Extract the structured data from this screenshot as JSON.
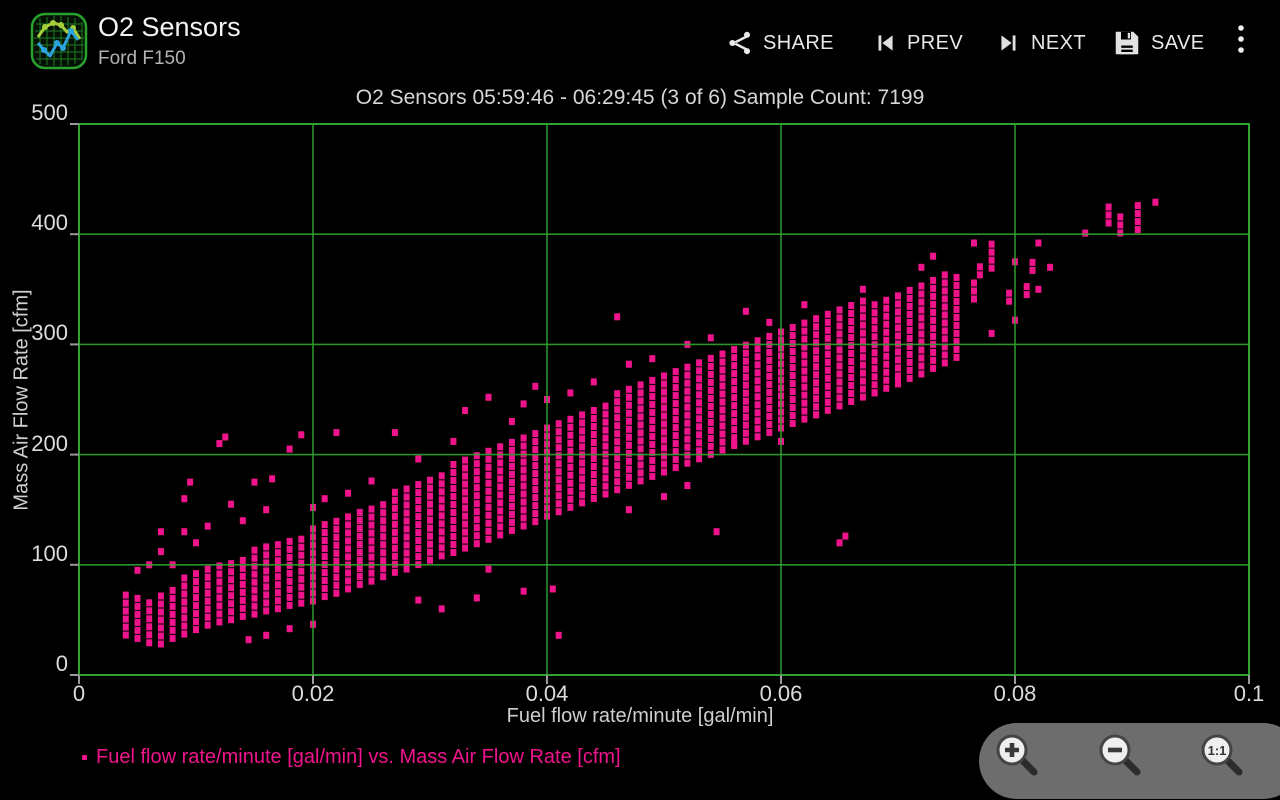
{
  "header": {
    "title": "O2 Sensors",
    "subtitle": "Ford F150",
    "actions": [
      {
        "id": "share",
        "label": "SHARE",
        "icon": "share-icon"
      },
      {
        "id": "prev",
        "label": "PREV",
        "icon": "skip-previous-icon"
      },
      {
        "id": "next",
        "label": "NEXT",
        "icon": "skip-next-icon"
      },
      {
        "id": "save",
        "label": "SAVE",
        "icon": "save-icon"
      },
      {
        "id": "overflow",
        "label": "",
        "icon": "overflow-menu-icon"
      }
    ]
  },
  "chart_data": {
    "type": "scatter",
    "title": "O2 Sensors 05:59:46 - 06:29:45 (3 of 6) Sample Count: 7199",
    "time_start": "05:59:46",
    "time_end": "06:29:45",
    "page": "3 of 6",
    "sample_count": 7199,
    "xlabel": "Fuel flow rate/minute [gal/min]",
    "ylabel": "Mass Air Flow Rate [cfm]",
    "series_label": "Fuel flow rate/minute [gal/min] vs. Mass Air Flow Rate [cfm]",
    "xlim": [
      0,
      0.1
    ],
    "ylim": [
      0,
      500
    ],
    "xticks": [
      0,
      0.02,
      0.04,
      0.06,
      0.08,
      0.1
    ],
    "xtick_labels": [
      "0",
      "0.02",
      "0.04",
      "0.06",
      "0.08",
      "0.1"
    ],
    "yticks": [
      0,
      100,
      200,
      300,
      400,
      500
    ],
    "ytick_labels": [
      "0",
      "100",
      "200",
      "300",
      "400",
      "500"
    ],
    "grid": true,
    "legend_position": "bottom-left",
    "marker_color": "#f0148c",
    "trend": "positive linear, y ≈ 4230·x + 28",
    "columns": [
      {
        "x": 0.004,
        "y_min": 33,
        "y_max": 72
      },
      {
        "x": 0.005,
        "y_min": 30,
        "y_max": 68
      },
      {
        "x": 0.006,
        "y_min": 26,
        "y_max": 66
      },
      {
        "x": 0.007,
        "y_min": 25,
        "y_max": 74
      },
      {
        "x": 0.008,
        "y_min": 30,
        "y_max": 80
      },
      {
        "x": 0.009,
        "y_min": 34,
        "y_max": 86
      },
      {
        "x": 0.01,
        "y_min": 38,
        "y_max": 92
      },
      {
        "x": 0.011,
        "y_min": 42,
        "y_max": 96
      },
      {
        "x": 0.012,
        "y_min": 45,
        "y_max": 100
      },
      {
        "x": 0.013,
        "y_min": 47,
        "y_max": 104
      },
      {
        "x": 0.014,
        "y_min": 50,
        "y_max": 108
      },
      {
        "x": 0.015,
        "y_min": 52,
        "y_max": 112
      },
      {
        "x": 0.016,
        "y_min": 55,
        "y_max": 116
      },
      {
        "x": 0.017,
        "y_min": 57,
        "y_max": 120
      },
      {
        "x": 0.018,
        "y_min": 60,
        "y_max": 122
      },
      {
        "x": 0.019,
        "y_min": 62,
        "y_max": 126
      },
      {
        "x": 0.02,
        "y_min": 64,
        "y_max": 130
      },
      {
        "x": 0.021,
        "y_min": 68,
        "y_max": 134
      },
      {
        "x": 0.022,
        "y_min": 71,
        "y_max": 140
      },
      {
        "x": 0.023,
        "y_min": 75,
        "y_max": 144
      },
      {
        "x": 0.024,
        "y_min": 79,
        "y_max": 148
      },
      {
        "x": 0.025,
        "y_min": 82,
        "y_max": 154
      },
      {
        "x": 0.026,
        "y_min": 86,
        "y_max": 158
      },
      {
        "x": 0.027,
        "y_min": 90,
        "y_max": 163
      },
      {
        "x": 0.028,
        "y_min": 93,
        "y_max": 168
      },
      {
        "x": 0.029,
        "y_min": 97,
        "y_max": 172
      },
      {
        "x": 0.03,
        "y_min": 101,
        "y_max": 178
      },
      {
        "x": 0.031,
        "y_min": 105,
        "y_max": 182
      },
      {
        "x": 0.032,
        "y_min": 108,
        "y_max": 188
      },
      {
        "x": 0.033,
        "y_min": 112,
        "y_max": 192
      },
      {
        "x": 0.034,
        "y_min": 116,
        "y_max": 196
      },
      {
        "x": 0.035,
        "y_min": 120,
        "y_max": 202
      },
      {
        "x": 0.036,
        "y_min": 124,
        "y_max": 206
      },
      {
        "x": 0.037,
        "y_min": 128,
        "y_max": 211
      },
      {
        "x": 0.038,
        "y_min": 132,
        "y_max": 216
      },
      {
        "x": 0.039,
        "y_min": 136,
        "y_max": 220
      },
      {
        "x": 0.04,
        "y_min": 141,
        "y_max": 226
      },
      {
        "x": 0.041,
        "y_min": 145,
        "y_max": 230
      },
      {
        "x": 0.042,
        "y_min": 149,
        "y_max": 234
      },
      {
        "x": 0.043,
        "y_min": 153,
        "y_max": 239
      },
      {
        "x": 0.044,
        "y_min": 157,
        "y_max": 244
      },
      {
        "x": 0.045,
        "y_min": 161,
        "y_max": 248
      },
      {
        "x": 0.046,
        "y_min": 165,
        "y_max": 253
      },
      {
        "x": 0.047,
        "y_min": 169,
        "y_max": 257
      },
      {
        "x": 0.048,
        "y_min": 173,
        "y_max": 262
      },
      {
        "x": 0.049,
        "y_min": 177,
        "y_max": 266
      },
      {
        "x": 0.05,
        "y_min": 181,
        "y_max": 271
      },
      {
        "x": 0.051,
        "y_min": 185,
        "y_max": 275
      },
      {
        "x": 0.052,
        "y_min": 189,
        "y_max": 280
      },
      {
        "x": 0.053,
        "y_min": 193,
        "y_max": 284
      },
      {
        "x": 0.054,
        "y_min": 197,
        "y_max": 288
      },
      {
        "x": 0.055,
        "y_min": 201,
        "y_max": 292
      },
      {
        "x": 0.056,
        "y_min": 205,
        "y_max": 296
      },
      {
        "x": 0.057,
        "y_min": 209,
        "y_max": 300
      },
      {
        "x": 0.058,
        "y_min": 213,
        "y_max": 304
      },
      {
        "x": 0.059,
        "y_min": 217,
        "y_max": 308
      },
      {
        "x": 0.06,
        "y_min": 221,
        "y_max": 311
      },
      {
        "x": 0.061,
        "y_min": 225,
        "y_max": 315
      },
      {
        "x": 0.062,
        "y_min": 229,
        "y_max": 319
      },
      {
        "x": 0.063,
        "y_min": 233,
        "y_max": 322
      },
      {
        "x": 0.064,
        "y_min": 237,
        "y_max": 326
      },
      {
        "x": 0.065,
        "y_min": 241,
        "y_max": 330
      },
      {
        "x": 0.066,
        "y_min": 245,
        "y_max": 333
      },
      {
        "x": 0.067,
        "y_min": 249,
        "y_max": 337
      },
      {
        "x": 0.068,
        "y_min": 253,
        "y_max": 340
      },
      {
        "x": 0.069,
        "y_min": 257,
        "y_max": 344
      },
      {
        "x": 0.07,
        "y_min": 261,
        "y_max": 347
      },
      {
        "x": 0.071,
        "y_min": 266,
        "y_max": 350
      },
      {
        "x": 0.072,
        "y_min": 270,
        "y_max": 354
      },
      {
        "x": 0.073,
        "y_min": 275,
        "y_max": 358
      },
      {
        "x": 0.074,
        "y_min": 280,
        "y_max": 360
      },
      {
        "x": 0.075,
        "y_min": 285,
        "y_max": 363
      },
      {
        "x": 0.0765,
        "y_min": 338,
        "y_max": 354
      },
      {
        "x": 0.077,
        "y_min": 360,
        "y_max": 373
      },
      {
        "x": 0.078,
        "y_min": 366,
        "y_max": 390
      },
      {
        "x": 0.0795,
        "y_min": 336,
        "y_max": 348
      },
      {
        "x": 0.081,
        "y_min": 342,
        "y_max": 352
      },
      {
        "x": 0.0815,
        "y_min": 364,
        "y_max": 376
      },
      {
        "x": 0.088,
        "y_min": 407,
        "y_max": 426
      },
      {
        "x": 0.089,
        "y_min": 398,
        "y_max": 417
      },
      {
        "x": 0.0905,
        "y_min": 401,
        "y_max": 427
      }
    ],
    "outliers": [
      [
        0.005,
        95
      ],
      [
        0.006,
        100
      ],
      [
        0.007,
        112
      ],
      [
        0.007,
        130
      ],
      [
        0.008,
        100
      ],
      [
        0.009,
        130
      ],
      [
        0.009,
        160
      ],
      [
        0.0095,
        175
      ],
      [
        0.01,
        120
      ],
      [
        0.011,
        135
      ],
      [
        0.012,
        210
      ],
      [
        0.0125,
        216
      ],
      [
        0.013,
        155
      ],
      [
        0.014,
        140
      ],
      [
        0.0145,
        32
      ],
      [
        0.015,
        175
      ],
      [
        0.016,
        150
      ],
      [
        0.016,
        36
      ],
      [
        0.0165,
        178
      ],
      [
        0.018,
        205
      ],
      [
        0.018,
        42
      ],
      [
        0.019,
        218
      ],
      [
        0.02,
        152
      ],
      [
        0.02,
        46
      ],
      [
        0.021,
        160
      ],
      [
        0.022,
        220
      ],
      [
        0.023,
        165
      ],
      [
        0.025,
        176
      ],
      [
        0.027,
        220
      ],
      [
        0.029,
        196
      ],
      [
        0.029,
        68
      ],
      [
        0.031,
        60
      ],
      [
        0.032,
        212
      ],
      [
        0.033,
        240
      ],
      [
        0.034,
        70
      ],
      [
        0.035,
        252
      ],
      [
        0.035,
        96
      ],
      [
        0.037,
        230
      ],
      [
        0.038,
        246
      ],
      [
        0.038,
        76
      ],
      [
        0.039,
        262
      ],
      [
        0.04,
        250
      ],
      [
        0.0405,
        78
      ],
      [
        0.041,
        36
      ],
      [
        0.042,
        256
      ],
      [
        0.044,
        266
      ],
      [
        0.046,
        325
      ],
      [
        0.047,
        282
      ],
      [
        0.047,
        150
      ],
      [
        0.049,
        287
      ],
      [
        0.05,
        162
      ],
      [
        0.052,
        300
      ],
      [
        0.052,
        172
      ],
      [
        0.054,
        306
      ],
      [
        0.0545,
        130
      ],
      [
        0.056,
        210
      ],
      [
        0.057,
        330
      ],
      [
        0.059,
        320
      ],
      [
        0.06,
        212
      ],
      [
        0.062,
        336
      ],
      [
        0.063,
        236
      ],
      [
        0.065,
        120
      ],
      [
        0.0655,
        126
      ],
      [
        0.067,
        350
      ],
      [
        0.068,
        256
      ],
      [
        0.07,
        266
      ],
      [
        0.072,
        370
      ],
      [
        0.073,
        380
      ],
      [
        0.0765,
        392
      ],
      [
        0.078,
        310
      ],
      [
        0.08,
        322
      ],
      [
        0.08,
        375
      ],
      [
        0.082,
        392
      ],
      [
        0.082,
        350
      ],
      [
        0.083,
        370
      ],
      [
        0.086,
        401
      ],
      [
        0.092,
        429
      ]
    ]
  },
  "zoom_controls": [
    {
      "id": "zoom-in",
      "glyph": "+",
      "icon": "zoom-in-magnifier-icon"
    },
    {
      "id": "zoom-out",
      "glyph": "−",
      "icon": "zoom-out-magnifier-icon"
    },
    {
      "id": "zoom-reset",
      "glyph": "1:1",
      "icon": "zoom-reset-magnifier-icon"
    }
  ],
  "colors": {
    "background": "#000000",
    "accent_pink": "#f0148c",
    "grid_green": "#2fa32f",
    "tick_gray": "#9a9a9a",
    "text_primary": "#e9e9e9",
    "text_secondary": "#b3b3b3",
    "zoom_bar_gray": "#6d6d6d"
  }
}
